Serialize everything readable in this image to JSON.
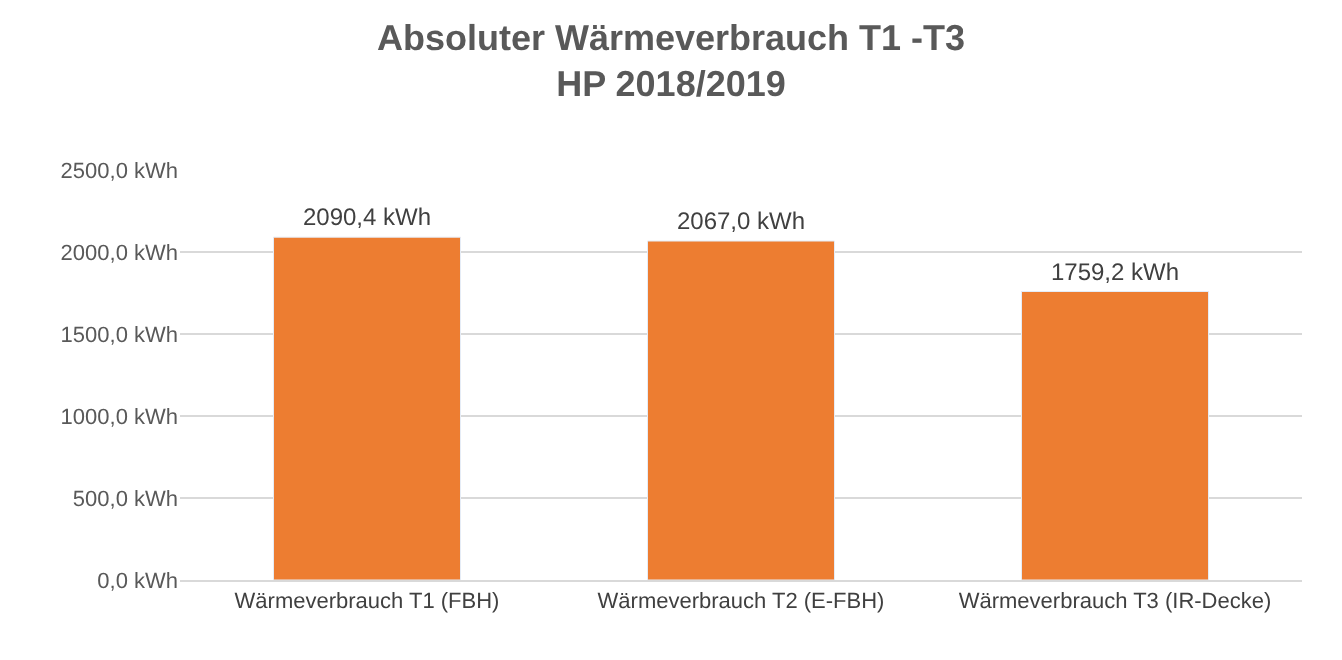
{
  "chart_data": {
    "type": "bar",
    "title": "Absoluter Wärmeverbrauch T1 -T3\nHP 2018/2019",
    "categories": [
      "Wärmeverbrauch T1 (FBH)",
      "Wärmeverbrauch T2 (E-FBH)",
      "Wärmeverbrauch T3 (IR-Decke)"
    ],
    "values": [
      2090.4,
      2067.0,
      1759.2
    ],
    "color": "#ed7d31",
    "value_labels": [
      "2090,4 kWh",
      "2067,0 kWh",
      "1759,2 kWh"
    ],
    "ylim": [
      0,
      2500
    ],
    "yticks": [
      {
        "value": 0,
        "label": "0,0 kWh"
      },
      {
        "value": 500,
        "label": "500,0 kWh"
      },
      {
        "value": 1000,
        "label": "1000,0 kWh"
      },
      {
        "value": 1500,
        "label": "1500,0 kWh"
      },
      {
        "value": 2000,
        "label": "2000,0 kWh"
      },
      {
        "value": 2500,
        "label": "2500,0 kWh"
      }
    ],
    "grid": "y"
  }
}
